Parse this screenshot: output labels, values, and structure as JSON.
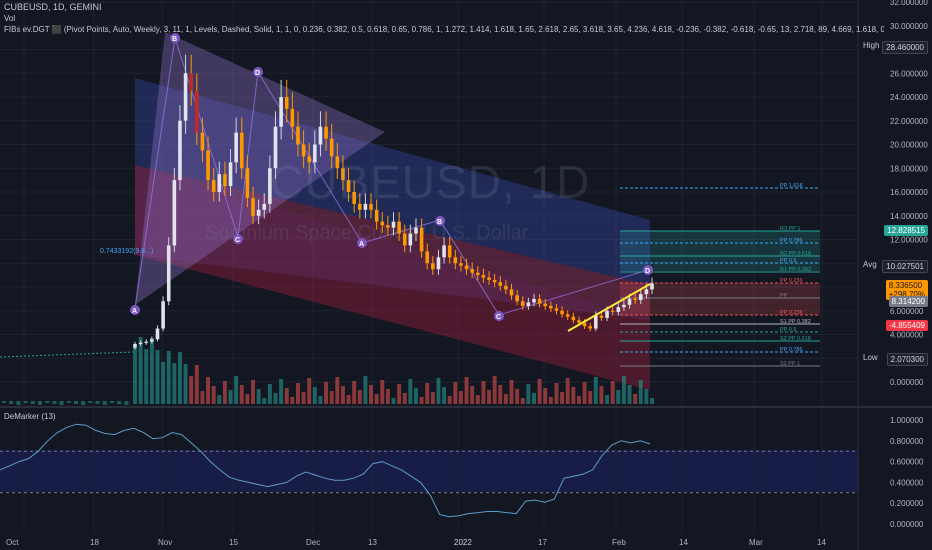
{
  "header": {
    "title": "CUBEUSD, 1D, GEMINI",
    "vol_label": "Vol",
    "fibs_label": "FIBs ev.DGT ⬛ (Pivot Points, Auto, Weekly, 3, 11, 1, Levels, Dashed, Solid, 1, 1, 0, 0.236, 0.382, 0.5, 0.618, 0.65, 0.786, 1, 1.272, 1.414, 1.618, 1.65, 2.618, 2.65, 3.618, 3.65, 4.236, 4.618, -0.236, -0.382, -0.618, -0.65, 13, 2.718, 89, 4.669, 1.618, 0.6"
  },
  "watermark": {
    "symbol": "CUBEUSD, 1D",
    "name": "Somnium Space Cubes / U.S. Dollar"
  },
  "price_axis": {
    "ticks": [
      "32.000000",
      "30.000000",
      "28.000000",
      "26.000000",
      "24.000000",
      "22.000000",
      "20.000000",
      "18.000000",
      "16.000000",
      "14.000000",
      "12.000000",
      "10.000000",
      "8.000000",
      "6.000000",
      "4.000000",
      "2.000000",
      "0.000000"
    ]
  },
  "badges": {
    "high_label": "High",
    "high_value": "28.460000",
    "green_value": "12.828515",
    "avg_label": "Avg",
    "avg_value": "10.027501",
    "last_value": "8.336500",
    "last_change": "+298.70%",
    "prev_value": "8.314200",
    "neg_value": "-4.855409",
    "low_label": "Low",
    "low_value": "2.070300"
  },
  "pivot_labels": [
    "R3 PP 1",
    "PP 0.786",
    "R2 PP 0.618",
    "PP 0.5",
    "R1 PP 0.382",
    "PP 0.236",
    "PP",
    "PP 0.236",
    "S1 PP 0.382",
    "PP 0.5",
    "S2 PP 0.618",
    "PP 0.786",
    "S3 PP 1",
    "PP 1.618"
  ],
  "fib_left_label": "0.7433192(9.8...)",
  "pattern_points": [
    "A",
    "B",
    "C",
    "D",
    "A",
    "B",
    "C",
    "D"
  ],
  "indicator": {
    "label": "DeMarker (13)",
    "ticks": [
      "1.000000",
      "0.800000",
      "0.600000",
      "0.400000",
      "0.200000",
      "0.000000"
    ]
  },
  "time_axis": [
    "Oct",
    "18",
    "Nov",
    "15",
    "Dec",
    "13",
    "2022",
    "17",
    "Feb",
    "14",
    "Mar",
    "14"
  ],
  "colors": {
    "up": "#26a69a",
    "down": "#ef5350",
    "accent": "#2962ff",
    "pattern": "#7e57c2"
  },
  "chart_data": [
    {
      "type": "candlestick",
      "title": "CUBEUSD, 1D, GEMINI",
      "ylim": [
        0,
        32
      ],
      "x_labels": [
        "Oct",
        "18",
        "Nov",
        "15",
        "Dec",
        "13",
        "2022",
        "17",
        "Feb",
        "14",
        "Mar",
        "14"
      ],
      "series": [
        {
          "name": "CUBEUSD",
          "close": [
            3.2,
            3.3,
            3.4,
            3.6,
            4.5,
            6.8,
            11.5,
            17,
            22,
            26,
            24.5,
            21,
            19.5,
            17,
            16,
            17.5,
            16.5,
            18.5,
            21,
            18,
            15.5,
            14,
            14.5,
            15,
            18,
            21.5,
            24,
            23,
            21.5,
            20,
            19,
            18.5,
            20,
            21.5,
            20.5,
            19,
            18,
            17,
            16,
            15,
            14.5,
            15,
            14.5,
            13.5,
            13.2,
            13,
            13.5,
            12.5,
            11.5,
            12.5,
            13,
            11,
            10,
            9.5,
            10.5,
            11.5,
            10.5,
            10,
            9.8,
            9.5,
            9.2,
            9,
            8.8,
            8.6,
            8.4,
            8.1,
            7.8,
            7.3,
            6.8,
            6.4,
            6.7,
            7,
            6.6,
            6.4,
            6.2,
            6,
            5.7,
            5.5,
            5.2,
            5,
            4.7,
            4.5,
            5.6,
            5.4,
            6,
            5.9,
            6.3,
            6.5,
            7,
            6.9,
            7.4,
            7.8,
            8.3
          ]
        }
      ],
      "range_labels": {
        "high": "28.460000",
        "low": "2.070300",
        "avg": "10.027501",
        "last": "8.336500",
        "change": "+298.70%"
      }
    },
    {
      "type": "line",
      "title": "DeMarker (13)",
      "ylim": [
        0,
        1
      ],
      "series": [
        {
          "name": "DeMarker",
          "values": [
            0.52,
            0.56,
            0.6,
            0.63,
            0.7,
            0.8,
            0.88,
            0.93,
            0.96,
            0.95,
            0.9,
            0.87,
            0.86,
            0.9,
            0.92,
            0.88,
            0.82,
            0.83,
            0.88,
            0.86,
            0.78,
            0.7,
            0.6,
            0.52,
            0.45,
            0.42,
            0.4,
            0.38,
            0.36,
            0.38,
            0.4,
            0.46,
            0.5,
            0.47,
            0.44,
            0.42,
            0.42,
            0.44,
            0.48,
            0.58,
            0.6,
            0.56,
            0.52,
            0.46,
            0.4,
            0.28,
            0.09,
            0.07,
            0.08,
            0.1,
            0.11,
            0.12,
            0.12,
            0.11,
            0.1,
            0.22,
            0.23,
            0.21,
            0.24,
            0.44,
            0.46,
            0.48,
            0.52,
            0.66,
            0.76,
            0.8,
            0.78,
            0.8,
            0.77
          ]
        }
      ]
    }
  ]
}
